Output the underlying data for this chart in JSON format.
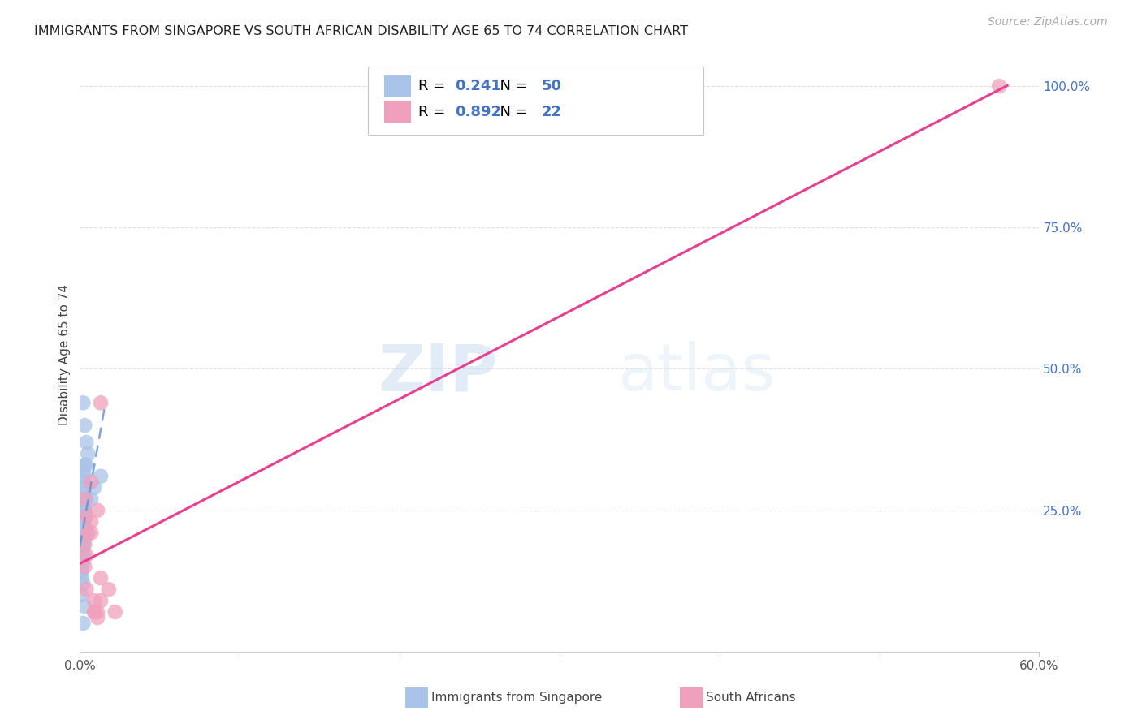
{
  "title": "IMMIGRANTS FROM SINGAPORE VS SOUTH AFRICAN DISABILITY AGE 65 TO 74 CORRELATION CHART",
  "source": "Source: ZipAtlas.com",
  "ylabel": "Disability Age 65 to 74",
  "xlim": [
    0.0,
    0.6
  ],
  "ylim": [
    0.0,
    1.05
  ],
  "xticks": [
    0.0,
    0.1,
    0.2,
    0.3,
    0.4,
    0.5,
    0.6
  ],
  "xticklabels": [
    "0.0%",
    "",
    "",
    "",
    "",
    "",
    "60.0%"
  ],
  "yticks_right": [
    0.25,
    0.5,
    0.75,
    1.0
  ],
  "yticklabels_right": [
    "25.0%",
    "50.0%",
    "75.0%",
    "100.0%"
  ],
  "singapore_R": 0.241,
  "singapore_N": 50,
  "southafrica_R": 0.892,
  "southafrica_N": 22,
  "singapore_color": "#a8c4e8",
  "southafrica_color": "#f0a0bc",
  "singapore_line_color": "#6090d0",
  "southafrica_line_color": "#e84090",
  "legend_label_blue": "Immigrants from Singapore",
  "legend_label_pink": "South Africans",
  "watermark_zip": "ZIP",
  "watermark_atlas": "atlas",
  "background_color": "#ffffff",
  "grid_color": "#e0e0e0",
  "singapore_x": [
    0.002,
    0.003,
    0.004,
    0.005,
    0.003,
    0.002,
    0.004,
    0.003,
    0.002,
    0.003,
    0.002,
    0.003,
    0.004,
    0.002,
    0.003,
    0.002,
    0.003,
    0.002,
    0.003,
    0.002,
    0.002,
    0.003,
    0.002,
    0.003,
    0.002,
    0.002,
    0.003,
    0.002,
    0.003,
    0.002,
    0.001,
    0.002,
    0.002,
    0.001,
    0.002,
    0.002,
    0.001,
    0.002,
    0.001,
    0.002,
    0.001,
    0.001,
    0.001,
    0.002,
    0.001,
    0.009,
    0.013,
    0.007,
    0.003,
    0.002
  ],
  "singapore_y": [
    0.44,
    0.4,
    0.37,
    0.35,
    0.33,
    0.32,
    0.33,
    0.31,
    0.3,
    0.29,
    0.28,
    0.27,
    0.27,
    0.26,
    0.26,
    0.25,
    0.25,
    0.24,
    0.24,
    0.23,
    0.23,
    0.22,
    0.22,
    0.22,
    0.21,
    0.21,
    0.21,
    0.2,
    0.2,
    0.2,
    0.19,
    0.19,
    0.19,
    0.18,
    0.18,
    0.17,
    0.17,
    0.17,
    0.16,
    0.16,
    0.15,
    0.14,
    0.13,
    0.12,
    0.1,
    0.29,
    0.31,
    0.27,
    0.08,
    0.05
  ],
  "southafrica_x": [
    0.003,
    0.004,
    0.003,
    0.004,
    0.003,
    0.005,
    0.007,
    0.004,
    0.009,
    0.011,
    0.013,
    0.009,
    0.007,
    0.011,
    0.013,
    0.009,
    0.018,
    0.022,
    0.011,
    0.007,
    0.575,
    0.013
  ],
  "southafrica_y": [
    0.27,
    0.24,
    0.19,
    0.17,
    0.15,
    0.21,
    0.3,
    0.11,
    0.07,
    0.06,
    0.09,
    0.07,
    0.23,
    0.25,
    0.13,
    0.09,
    0.11,
    0.07,
    0.07,
    0.21,
    1.0,
    0.44
  ],
  "sg_trend_x0": 0.0,
  "sg_trend_y0": 0.195,
  "sg_trend_x1": 0.016,
  "sg_trend_y1": 0.295,
  "sa_trend_x0": 0.0,
  "sa_trend_y0": 0.14,
  "sa_trend_x1": 0.575,
  "sa_trend_y1": 1.0
}
